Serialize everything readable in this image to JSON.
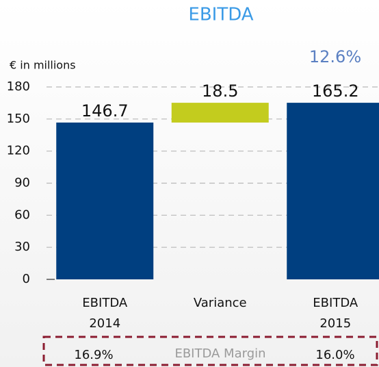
{
  "chart_data": {
    "type": "waterfall",
    "title": "EBITDA",
    "y_label": "€ in millions",
    "categories": [
      "EBITDA\n2014",
      "Variance",
      "EBITDA\n2015"
    ],
    "values": [
      146.7,
      18.5,
      165.2
    ],
    "measures": [
      "absolute",
      "relative",
      "total"
    ],
    "colors": [
      "#003f80",
      "#c3cc1e",
      "#003f80"
    ],
    "ylim": [
      0,
      180
    ],
    "yticks": [
      0,
      30,
      60,
      90,
      120,
      150,
      180
    ],
    "grid": true,
    "annotation": "12.6%",
    "margin_title": "EBITDA Margin",
    "margin_labels": [
      "16.9%",
      "16.0%"
    ]
  }
}
